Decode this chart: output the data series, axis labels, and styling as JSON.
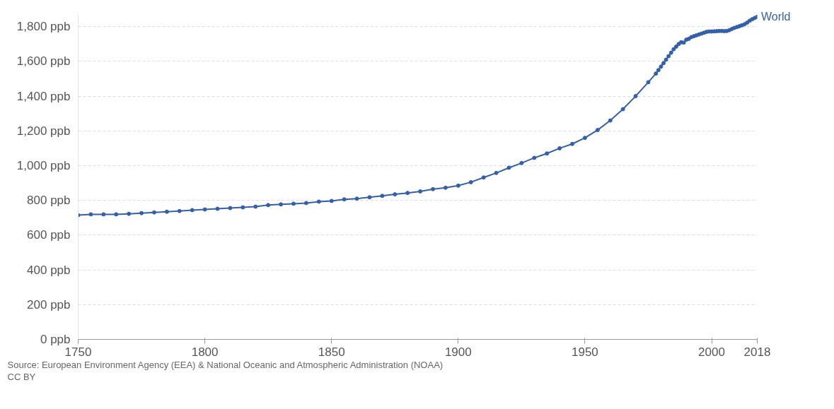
{
  "chart_data": {
    "type": "line",
    "x": [
      1750,
      1755,
      1760,
      1765,
      1770,
      1775,
      1780,
      1785,
      1790,
      1795,
      1800,
      1805,
      1810,
      1815,
      1820,
      1825,
      1830,
      1835,
      1840,
      1845,
      1850,
      1855,
      1860,
      1865,
      1870,
      1875,
      1880,
      1885,
      1890,
      1895,
      1900,
      1905,
      1910,
      1915,
      1920,
      1925,
      1930,
      1935,
      1940,
      1945,
      1950,
      1955,
      1960,
      1965,
      1970,
      1975,
      1978,
      1979,
      1980,
      1981,
      1982,
      1983,
      1984,
      1985,
      1986,
      1987,
      1988,
      1989,
      1990,
      1991,
      1992,
      1993,
      1994,
      1995,
      1996,
      1997,
      1998,
      1999,
      2000,
      2001,
      2002,
      2003,
      2004,
      2005,
      2006,
      2007,
      2008,
      2009,
      2010,
      2011,
      2012,
      2013,
      2014,
      2015,
      2016,
      2017,
      2018
    ],
    "series": [
      {
        "name": "World",
        "color": "#3360a9",
        "values": [
          715,
          720,
          720,
          720,
          723,
          727,
          731,
          735,
          739,
          744,
          748,
          752,
          756,
          760,
          764,
          773,
          777,
          781,
          785,
          793,
          797,
          806,
          810,
          818,
          826,
          835,
          843,
          852,
          865,
          873,
          885,
          905,
          932,
          958,
          988,
          1015,
          1045,
          1070,
          1100,
          1125,
          1160,
          1205,
          1260,
          1325,
          1400,
          1480,
          1530,
          1550,
          1570,
          1590,
          1610,
          1630,
          1650,
          1670,
          1685,
          1700,
          1710,
          1708,
          1725,
          1730,
          1740,
          1745,
          1750,
          1755,
          1760,
          1765,
          1770,
          1772,
          1772,
          1773,
          1774,
          1775,
          1775,
          1774,
          1775,
          1780,
          1787,
          1793,
          1798,
          1803,
          1808,
          1814,
          1823,
          1834,
          1843,
          1850,
          1857
        ]
      }
    ],
    "xlim": [
      1750,
      2018
    ],
    "xticks": [
      1750,
      1800,
      1850,
      1900,
      1950,
      2000,
      2018
    ],
    "ylim": [
      0,
      1870
    ],
    "yticks": [
      {
        "value": 0,
        "label": "0 ppb"
      },
      {
        "value": 200,
        "label": "200 ppb"
      },
      {
        "value": 400,
        "label": "400 ppb"
      },
      {
        "value": 600,
        "label": "600 ppb"
      },
      {
        "value": 800,
        "label": "800 ppb"
      },
      {
        "value": 1000,
        "label": "1,000 ppb"
      },
      {
        "value": 1200,
        "label": "1,200 ppb"
      },
      {
        "value": 1400,
        "label": "1,400 ppb"
      },
      {
        "value": 1600,
        "label": "1,600 ppb"
      },
      {
        "value": 1800,
        "label": "1,800 ppb"
      }
    ],
    "grid": "y",
    "marker": "circle",
    "line_style": "solid",
    "legend": false,
    "annotations": [
      "Source: European Environment Agency (EEA) & National Oceanic and Atmospheric Administration (NOAA)",
      "CC BY"
    ]
  }
}
